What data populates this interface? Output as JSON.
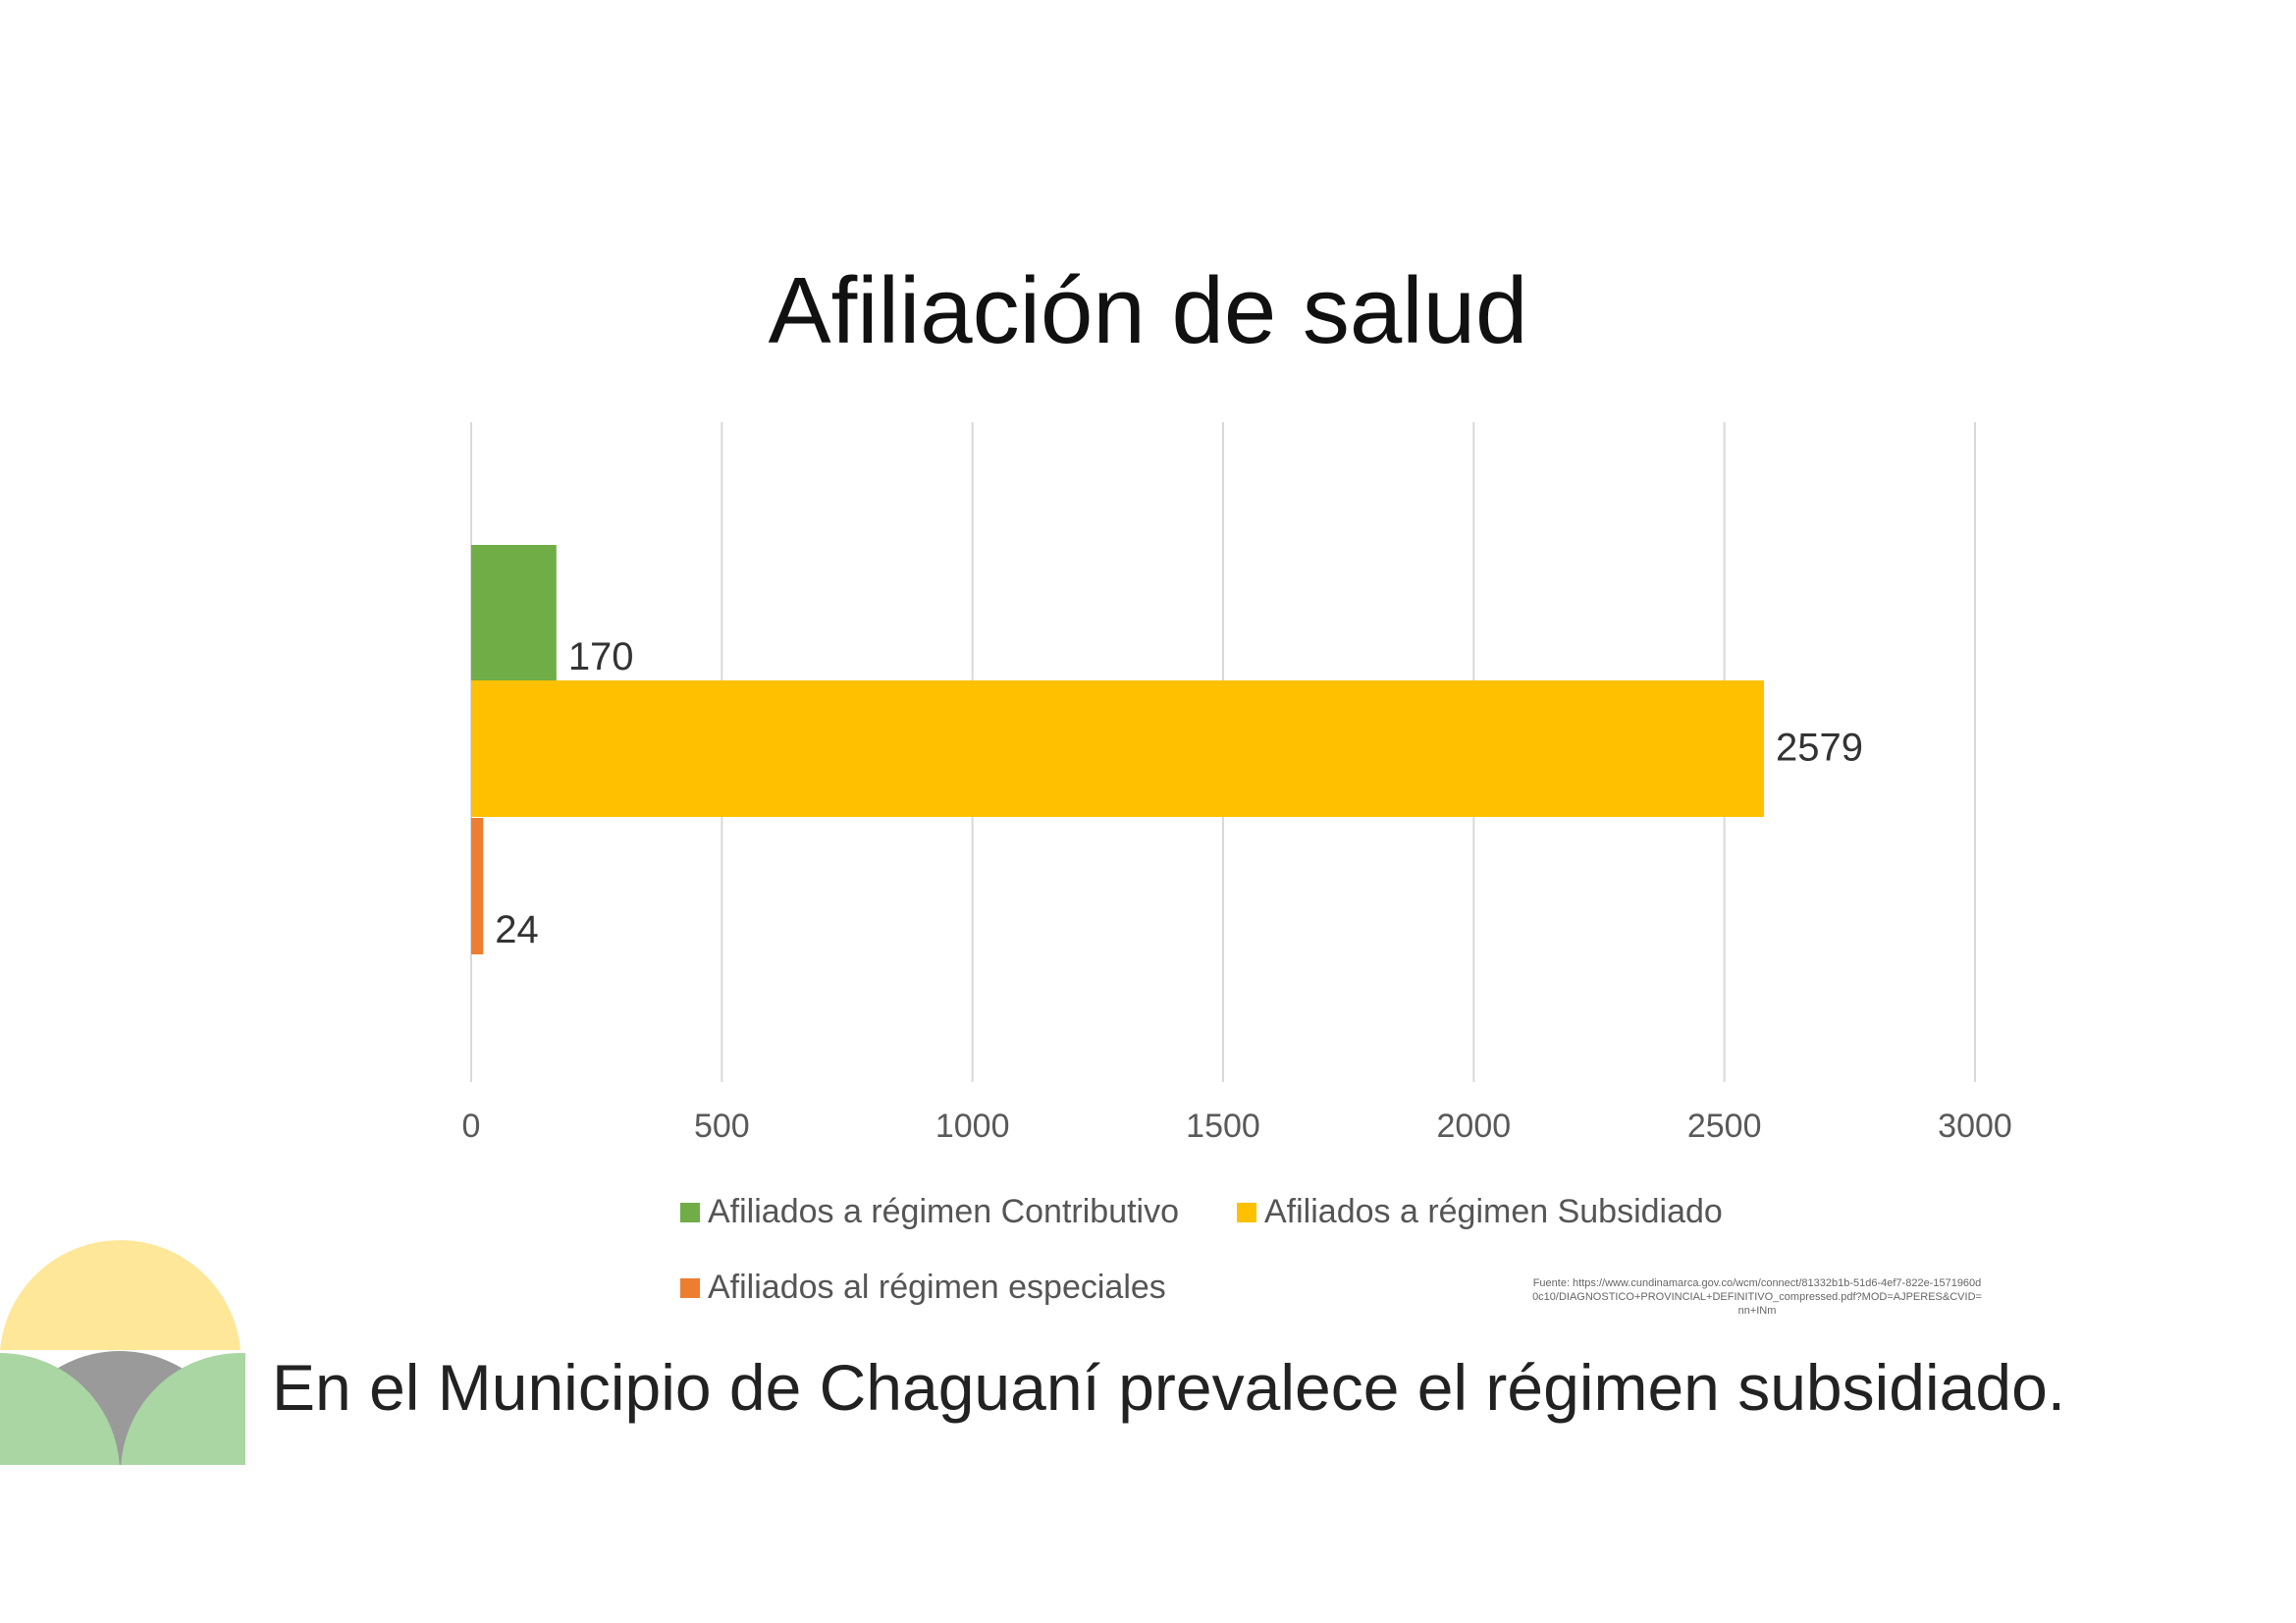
{
  "chart_data": {
    "type": "bar",
    "orientation": "horizontal",
    "title": "Afiliación de salud",
    "categories": [
      "Afiliados a régimen Contributivo",
      "Afiliados a régimen Subsidiado",
      "Afiliados al régimen especiales"
    ],
    "series": [
      {
        "name": "Afiliados a régimen Contributivo",
        "value": 170,
        "color": "#70ad47"
      },
      {
        "name": "Afiliados a régimen Subsidiado",
        "value": 2579,
        "color": "#ffc000"
      },
      {
        "name": "Afiliados al régimen especiales",
        "value": 24,
        "color": "#ed7d31"
      }
    ],
    "xlim": [
      0,
      3000
    ],
    "xticks": [
      "0",
      "500",
      "1000",
      "1500",
      "2000",
      "2500",
      "3000"
    ],
    "grid": true,
    "legend_position": "bottom"
  },
  "source": "Fuente: https://www.cundinamarca.gov.co/wcm/connect/81332b1b-51d6-4ef7-822e-1571960d0c10/DIAGNOSTICO+PROVINCIAL+DEFINITIVO_compressed.pdf?MOD=AJPERES&CVID=nn+INm",
  "caption": "En el Municipio de Chaguaní prevalece el régimen subsidiado."
}
